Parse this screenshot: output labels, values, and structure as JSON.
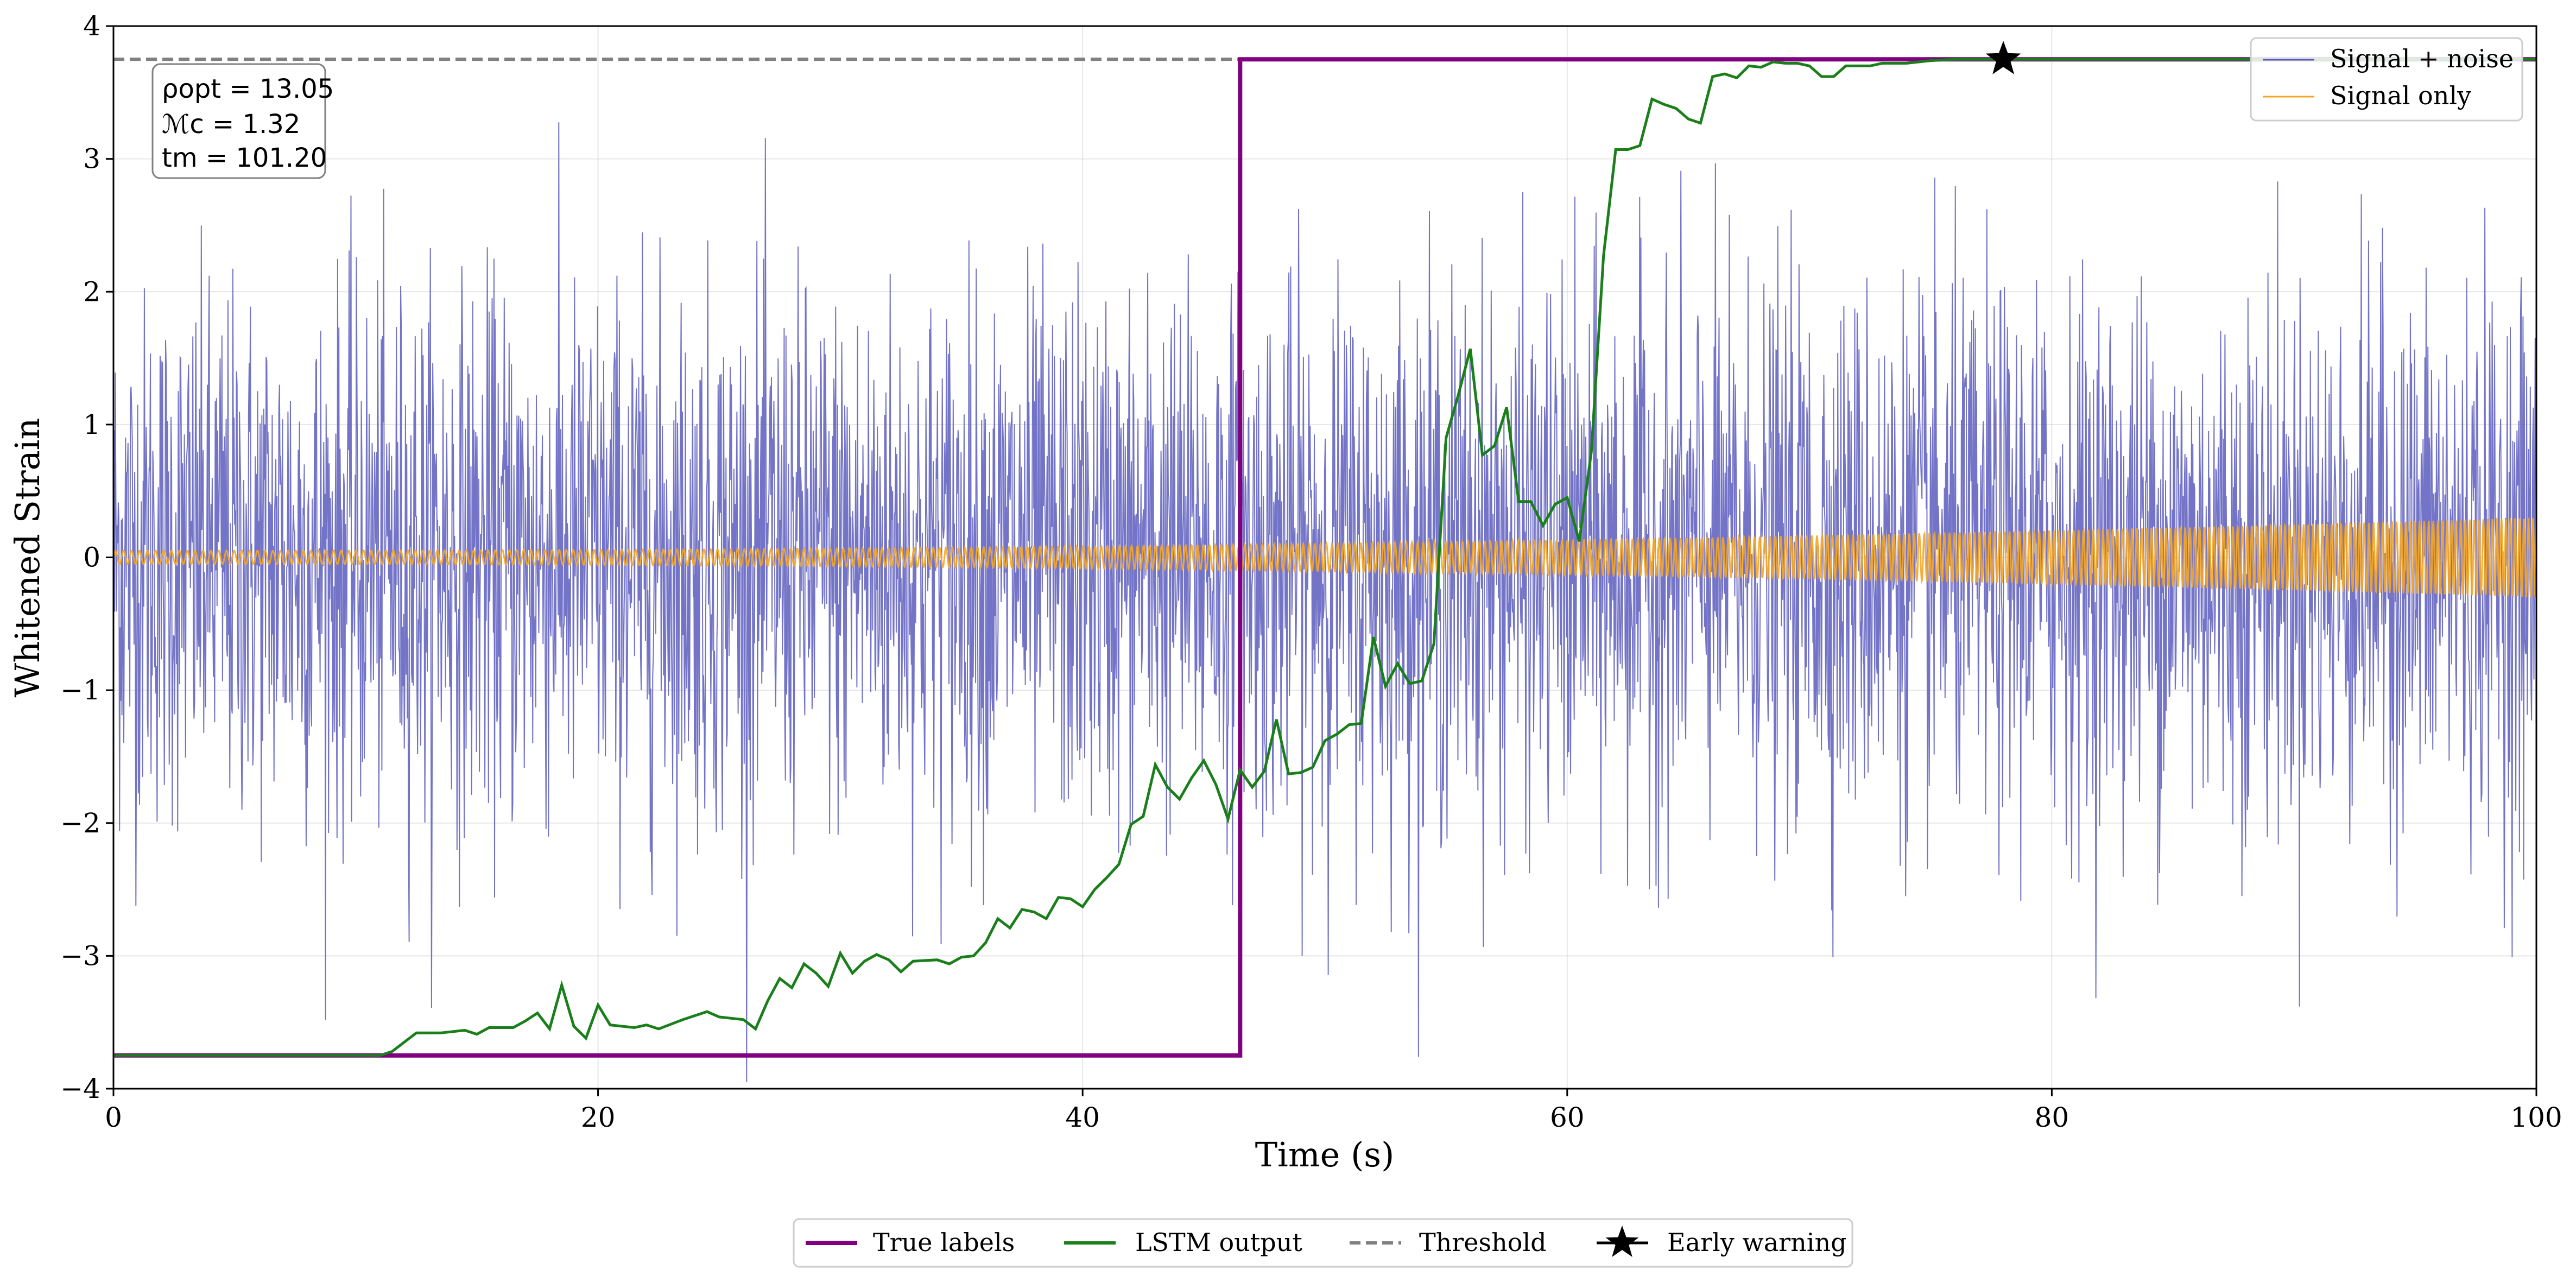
{
  "chart_data": {
    "type": "line",
    "title": "",
    "xlabel": "Time (s)",
    "ylabel": "Whitened Strain",
    "xlim": [
      0,
      100
    ],
    "ylim": [
      -4,
      4
    ],
    "xticks": [
      0,
      20,
      40,
      60,
      80,
      100
    ],
    "yticks": [
      -4,
      -3,
      -2,
      -1,
      0,
      1,
      2,
      3,
      4
    ],
    "ytick_labels": [
      "−4",
      "−3",
      "−2",
      "−1",
      "0",
      "1",
      "2",
      "3",
      "4"
    ],
    "grid": true,
    "threshold": 3.75,
    "true_label_step_time": 46.5,
    "true_labels_low": -3.75,
    "true_labels_high": 3.75,
    "early_warning": {
      "x": 78,
      "y": 3.75
    },
    "annotation": {
      "rho_line": "ρopt = 13.05",
      "mc_line": "ℳc = 1.32",
      "tm_line": "tm = 101.20"
    },
    "series": [
      {
        "name": "Signal + noise",
        "color": "#5b5bbd",
        "description": "whitened noisy strain, approx. amplitude ±1 sigma with spikes to ±3.8",
        "sigma": 1.0,
        "points": 4000
      },
      {
        "name": "Signal only",
        "color": "#f5a623",
        "description": "chirp signal, amplitude growing from 0.05 to 0.3",
        "amplitude_start": 0.05,
        "amplitude_end": 0.3
      },
      {
        "name": "LSTM output",
        "color": "#1a7f1a",
        "x": [
          0,
          11,
          11.5,
          12.5,
          13.5,
          14.5,
          15,
          15.5,
          16.5,
          17,
          17.5,
          18,
          18.5,
          19,
          19.5,
          20,
          20.5,
          21.5,
          22,
          22.5,
          23.5,
          24.5,
          25,
          25.5,
          26,
          26.5,
          27,
          27.5,
          28,
          28.5,
          29,
          29.5,
          30,
          30.5,
          31,
          31.5,
          32,
          32.5,
          33,
          34,
          34.5,
          35,
          35.5,
          36,
          36.5,
          37,
          37.5,
          38,
          38.5,
          39,
          39.5,
          40,
          40.5,
          41,
          41.5,
          42,
          42.5,
          43,
          43.5,
          44,
          44.5,
          45,
          45.5,
          46,
          46.5,
          47,
          47.5,
          48,
          48.5,
          49,
          49.5,
          50,
          50.5,
          51,
          51.5,
          52,
          52.5,
          53,
          53.5,
          54,
          54.5,
          55,
          55.5,
          56,
          56.5,
          57,
          57.5,
          58,
          58.5,
          59,
          59.5,
          60,
          60.5,
          61,
          61.5,
          62,
          62.5,
          63,
          63.5,
          64,
          64.5,
          65,
          65.5,
          66,
          66.5,
          67,
          67.5,
          68,
          68.5,
          69,
          69.5,
          70,
          70.5,
          71,
          71.5,
          72,
          72.5,
          73,
          74,
          75,
          76,
          78,
          100
        ],
        "y": [
          -3.75,
          -3.75,
          -3.72,
          -3.58,
          -3.58,
          -3.56,
          -3.59,
          -3.54,
          -3.54,
          -3.49,
          -3.43,
          -3.55,
          -3.22,
          -3.53,
          -3.62,
          -3.37,
          -3.52,
          -3.54,
          -3.52,
          -3.55,
          -3.48,
          -3.42,
          -3.46,
          -3.47,
          -3.48,
          -3.55,
          -3.34,
          -3.17,
          -3.24,
          -3.06,
          -3.13,
          -3.23,
          -2.98,
          -3.13,
          -3.04,
          -2.99,
          -3.03,
          -3.12,
          -3.04,
          -3.03,
          -3.06,
          -3.01,
          -3.0,
          -2.9,
          -2.72,
          -2.79,
          -2.65,
          -2.67,
          -2.72,
          -2.56,
          -2.57,
          -2.63,
          -2.5,
          -2.41,
          -2.31,
          -2.01,
          -1.95,
          -1.56,
          -1.73,
          -1.82,
          -1.66,
          -1.53,
          -1.71,
          -1.97,
          -1.6,
          -1.73,
          -1.61,
          -1.22,
          -1.63,
          -1.62,
          -1.58,
          -1.38,
          -1.33,
          -1.26,
          -1.25,
          -0.6,
          -0.97,
          -0.8,
          -0.95,
          -0.93,
          -0.65,
          0.9,
          1.22,
          1.57,
          0.77,
          0.84,
          1.13,
          0.42,
          0.42,
          0.24,
          0.4,
          0.45,
          0.12,
          0.8,
          2.27,
          3.07,
          3.07,
          3.1,
          3.45,
          3.41,
          3.38,
          3.3,
          3.27,
          3.62,
          3.64,
          3.61,
          3.7,
          3.69,
          3.73,
          3.72,
          3.72,
          3.7,
          3.62,
          3.62,
          3.7,
          3.7,
          3.7,
          3.72,
          3.72,
          3.74,
          3.75,
          3.75,
          3.75
        ]
      },
      {
        "name": "True labels",
        "color": "#800080",
        "x": [
          0,
          46.5,
          46.5,
          100
        ],
        "y": [
          -3.75,
          -3.75,
          3.75,
          3.75
        ]
      },
      {
        "name": "Threshold",
        "color": "#808080",
        "style": "dashed"
      }
    ],
    "legend_inner": {
      "placement": "top-right",
      "entries": [
        "Signal + noise",
        "Signal only"
      ]
    },
    "legend_bottom": {
      "placement": "bottom-center",
      "entries": [
        "True labels",
        "LSTM output",
        "Threshold",
        "Early warning"
      ]
    }
  }
}
